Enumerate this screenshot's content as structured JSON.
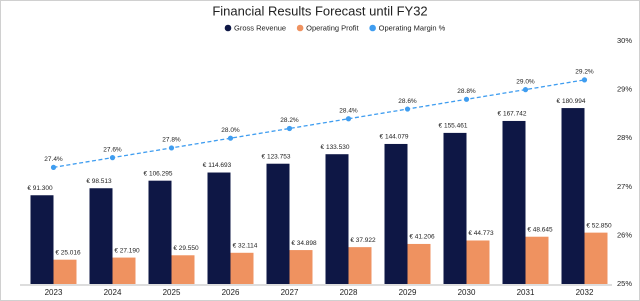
{
  "chart_data": {
    "type": "bar",
    "title": "Financial Results Forecast until FY32",
    "categories": [
      "2023",
      "2024",
      "2025",
      "2026",
      "2027",
      "2028",
      "2029",
      "2030",
      "2031",
      "2032"
    ],
    "series": [
      {
        "name": "Gross Revenue",
        "color": "#0e1745",
        "type": "bar",
        "values": [
          91300,
          98513,
          106295,
          114693,
          123753,
          133530,
          144079,
          155461,
          167742,
          180994
        ],
        "value_labels": [
          "€ 91.300",
          "€ 98.513",
          "€ 106.295",
          "€ 114.693",
          "€ 123.753",
          "€ 133.530",
          "€ 144.079",
          "€ 155.461",
          "€ 167.742",
          "€ 180.994"
        ]
      },
      {
        "name": "Operating Profit",
        "color": "#ef9260",
        "type": "bar",
        "values": [
          25016,
          27190,
          29550,
          32114,
          34898,
          37922,
          41206,
          44773,
          48645,
          52850
        ],
        "value_labels": [
          "€ 25.016",
          "€ 27.190",
          "€ 29.550",
          "€ 32.114",
          "€ 34.898",
          "€ 37.922",
          "€ 41.206",
          "€ 44.773",
          "€ 48.645",
          "€ 52.850"
        ]
      },
      {
        "name": "Operating Margin %",
        "color": "#3f9df0",
        "type": "line",
        "axis": "y2",
        "values": [
          27.4,
          27.6,
          27.8,
          28.0,
          28.2,
          28.4,
          28.6,
          28.8,
          29.0,
          29.2
        ],
        "value_labels": [
          "27.4%",
          "27.6%",
          "27.8%",
          "28.0%",
          "28.2%",
          "28.4%",
          "28.6%",
          "28.8%",
          "29.0%",
          "29.2%"
        ]
      }
    ],
    "ylim": [
      0,
      250000
    ],
    "y2lim": [
      25,
      30
    ],
    "y2ticks": [
      {
        "value": 25,
        "label": "25%"
      },
      {
        "value": 26,
        "label": "26%"
      },
      {
        "value": 27,
        "label": "27%"
      },
      {
        "value": 28,
        "label": "28%"
      },
      {
        "value": 29,
        "label": "29%"
      },
      {
        "value": 30,
        "label": "30%"
      }
    ],
    "legend": "top"
  }
}
